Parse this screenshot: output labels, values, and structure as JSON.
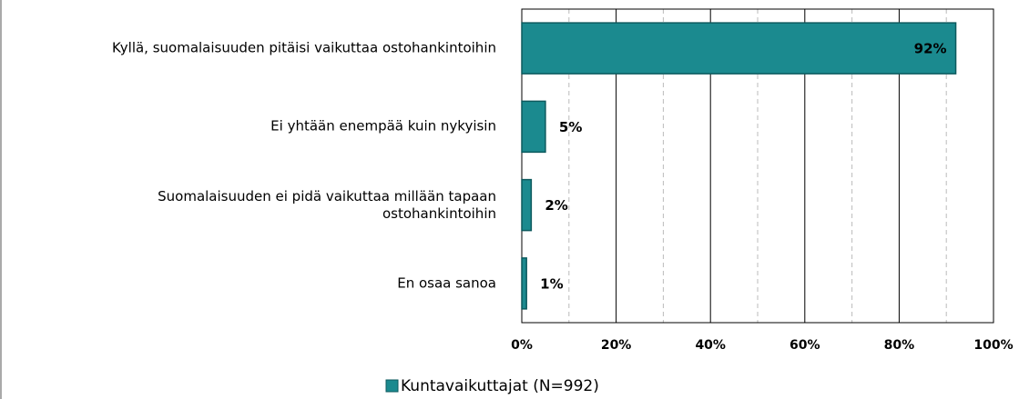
{
  "chart_data": {
    "type": "barh",
    "categories": [
      "Kyllä, suomalaisuuden pitäisi vaikuttaa ostohankintoihin",
      "Ei yhtään enempää kuin nykyisin",
      "Suomalaisuuden ei pidä vaikuttaa millään tapaan\nostohankintoihin",
      "En osaa sanoa"
    ],
    "series": [
      {
        "name": "Kuntavaikuttajat (N=992)",
        "color": "#1b8a8f",
        "values": [
          92,
          5,
          2,
          1
        ],
        "value_labels": [
          "92%",
          "5%",
          "2%",
          "1%"
        ]
      }
    ],
    "xlim": [
      0,
      100
    ],
    "xticks": [
      {
        "value": 0,
        "label": "0%"
      },
      {
        "value": 20,
        "label": "20%"
      },
      {
        "value": 40,
        "label": "40%"
      },
      {
        "value": 60,
        "label": "60%"
      },
      {
        "value": 80,
        "label": "80%"
      },
      {
        "value": 100,
        "label": "100%"
      }
    ],
    "xminorticks": [
      10,
      30,
      50,
      70,
      90
    ],
    "grid": true,
    "legend": "bottom"
  }
}
